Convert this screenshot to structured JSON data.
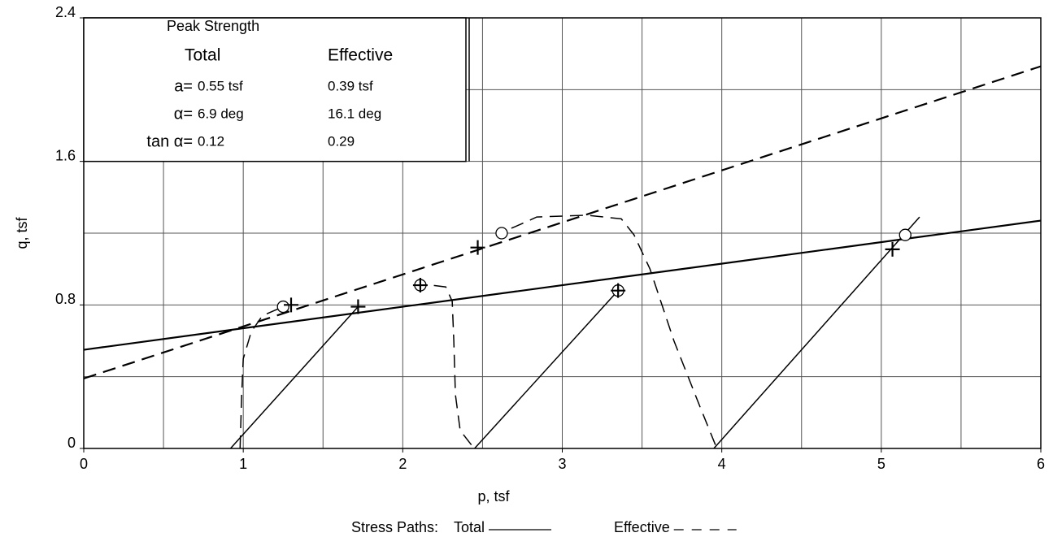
{
  "chart_data": {
    "type": "stress-path",
    "xlabel": "p, tsf",
    "ylabel": "q, tsf",
    "xlim": [
      0,
      6
    ],
    "ylim": [
      0,
      2.4
    ],
    "xticks": [
      0,
      1,
      2,
      3,
      4,
      5,
      6
    ],
    "yticks": [
      0,
      0.8,
      1.6,
      2.4
    ],
    "xgrid": [
      0.5,
      1,
      1.5,
      2,
      2.5,
      3,
      3.5,
      4,
      4.5,
      5,
      5.5
    ],
    "ygrid": [
      0.4,
      0.8,
      1.2,
      1.6,
      2.0
    ],
    "grid": true,
    "color": "#000000",
    "legend_title": "Stress Paths:",
    "series": [
      {
        "name": "Total",
        "style": "solid",
        "paths": [
          {
            "x": [
              0.92,
              1.72
            ],
            "values": [
              0,
              0.79
            ]
          },
          {
            "x": [
              2.45,
              3.35
            ],
            "values": [
              0,
              0.88
            ]
          },
          {
            "x": [
              3.95,
              5.24
            ],
            "values": [
              0,
              1.29
            ]
          }
        ]
      },
      {
        "name": "Effective",
        "style": "dashed",
        "paths": [
          {
            "x": [
              0.98,
              0.99,
              1.0,
              1.05,
              1.12,
              1.25
            ],
            "values": [
              0,
              0.3,
              0.5,
              0.65,
              0.74,
              0.79
            ]
          },
          {
            "x": [
              2.43,
              2.36,
              2.33,
              2.32,
              2.31,
              2.27,
              2.18,
              2.11
            ],
            "values": [
              0.02,
              0.1,
              0.3,
              0.6,
              0.82,
              0.9,
              0.91,
              0.91
            ]
          },
          {
            "x": [
              3.96,
              3.86,
              3.7,
              3.55,
              3.45,
              3.37,
              3.15,
              2.84,
              2.74,
              2.61
            ],
            "values": [
              0.02,
              0.24,
              0.6,
              1.0,
              1.19,
              1.28,
              1.3,
              1.29,
              1.25,
              1.2
            ]
          }
        ]
      }
    ],
    "envelopes": [
      {
        "style": "solid",
        "x": [
          0,
          6
        ],
        "values": [
          0.55,
          1.27
        ]
      },
      {
        "style": "dashed",
        "x": [
          0,
          6
        ],
        "values": [
          0.39,
          2.13
        ]
      }
    ],
    "markers": [
      {
        "shape": "circle",
        "x": [
          1.25,
          2.11,
          2.62,
          3.35,
          5.15
        ],
        "values": [
          0.79,
          0.91,
          1.2,
          0.88,
          1.19
        ]
      },
      {
        "shape": "plus",
        "x": [
          1.3,
          1.72,
          2.11,
          2.47,
          3.35,
          5.07
        ],
        "values": [
          0.8,
          0.79,
          0.91,
          1.12,
          0.88,
          1.11
        ]
      }
    ],
    "strength_table": {
      "title": "Peak Strength",
      "columns": [
        "Total",
        "Effective"
      ],
      "rows": [
        [
          "a=",
          "0.55 tsf",
          "0.39 tsf"
        ],
        [
          "α=",
          "6.9 deg",
          "16.1 deg"
        ],
        [
          "tan α=",
          "0.12",
          "0.29"
        ]
      ]
    }
  }
}
